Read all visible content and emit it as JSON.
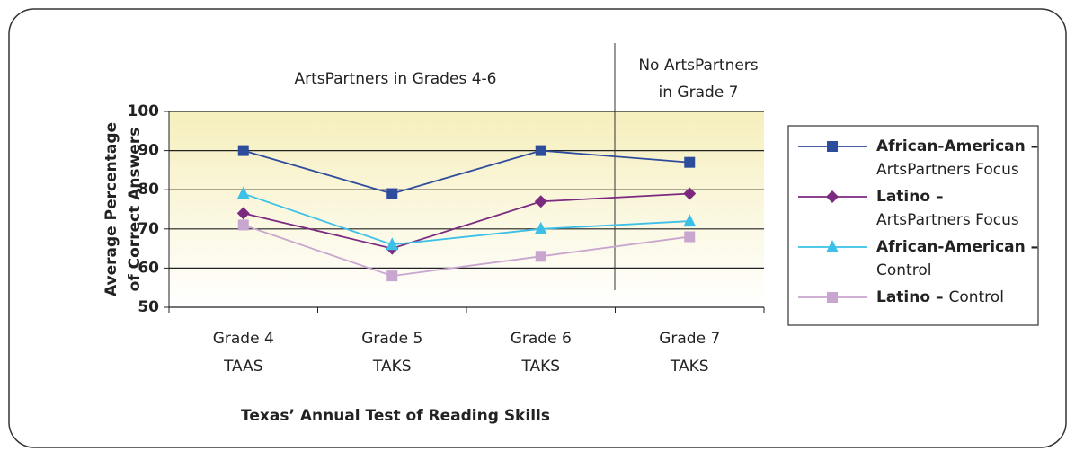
{
  "chart_data": {
    "type": "line",
    "ylabel": [
      "Average Percentage",
      "of Correct Answers"
    ],
    "xlabel": "Texas’ Annual Test of Reading Skills",
    "annotations": [
      "ArtsPartners in Grades 4-6",
      [
        "No ArtsPartners",
        "in Grade 7"
      ]
    ],
    "categories": [
      [
        "Grade 4",
        "TAAS"
      ],
      [
        "Grade 5",
        "TAKS"
      ],
      [
        "Grade 6",
        "TAKS"
      ],
      [
        "Grade 7",
        "TAKS"
      ]
    ],
    "ylim": [
      50,
      100
    ],
    "yticks": [
      50,
      60,
      70,
      80,
      90,
      100
    ],
    "grid": true,
    "series": [
      {
        "name": [
          "African-American –",
          "ArtsPartners Focus"
        ],
        "color": "#2e4c9c",
        "marker": "square",
        "values": [
          90,
          79,
          90,
          87
        ]
      },
      {
        "name": [
          "Latino –",
          "ArtsPartners Focus"
        ],
        "color": "#7b2a7f",
        "marker": "diamond",
        "values": [
          74,
          65,
          77,
          79
        ]
      },
      {
        "name": [
          "African-American –",
          "Control"
        ],
        "color": "#3cc0e8",
        "marker": "triangle",
        "values": [
          79,
          66,
          70,
          72
        ]
      },
      {
        "name": [
          "Latino –",
          "Control"
        ],
        "color": "#c9a6cf",
        "marker": "square",
        "values": [
          71,
          58,
          63,
          68
        ]
      }
    ]
  }
}
